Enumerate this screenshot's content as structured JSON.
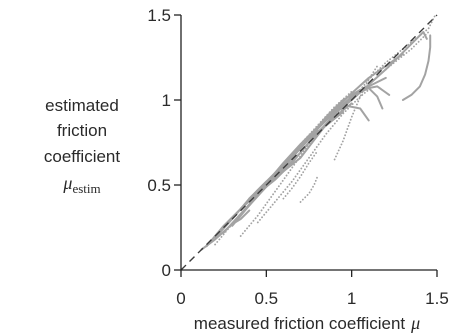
{
  "chart_data": {
    "type": "line",
    "title": "",
    "xlabel": "measured friction coefficient",
    "xlabel_symbol": "μ",
    "ylabel_lines": [
      "estimated",
      "friction",
      "coefficient"
    ],
    "ylabel_symbol": "μ",
    "ylabel_subscript": "estim",
    "xlim": [
      0,
      1.5
    ],
    "ylim": [
      0,
      1.5
    ],
    "x_ticks": [
      {
        "value": 0,
        "label": "0"
      },
      {
        "value": 0.5,
        "label": "0.5"
      },
      {
        "value": 1,
        "label": "1"
      },
      {
        "value": 1.5,
        "label": "1.5"
      }
    ],
    "y_ticks": [
      {
        "value": 0,
        "label": "0"
      },
      {
        "value": 0.5,
        "label": "0.5"
      },
      {
        "value": 1,
        "label": "1"
      },
      {
        "value": 1.5,
        "label": "1.5"
      }
    ],
    "grid": false,
    "colors": {
      "trace": "#a3a3a3",
      "reference": "#3c3c3c",
      "axis": "#222222"
    },
    "reference_line": {
      "x": [
        0,
        1.5
      ],
      "y": [
        0,
        1.5
      ],
      "style": "dashed"
    },
    "series": [
      {
        "style": "solid",
        "x": [
          0.12,
          0.2,
          0.3,
          0.4,
          0.5,
          0.6,
          0.7,
          0.8,
          0.9,
          1.0,
          1.1,
          1.2,
          1.3
        ],
        "y": [
          0.12,
          0.18,
          0.27,
          0.38,
          0.5,
          0.61,
          0.72,
          0.83,
          0.94,
          1.04,
          1.13,
          1.2,
          1.27
        ]
      },
      {
        "style": "solid",
        "x": [
          0.15,
          0.25,
          0.35,
          0.45,
          0.55,
          0.65,
          0.75,
          0.85,
          0.95,
          1.05
        ],
        "y": [
          0.14,
          0.26,
          0.36,
          0.45,
          0.53,
          0.63,
          0.75,
          0.86,
          0.97,
          1.06
        ]
      },
      {
        "style": "solid",
        "x": [
          0.2,
          0.3,
          0.4,
          0.5,
          0.6,
          0.7,
          0.8,
          0.9,
          1.0,
          1.1,
          1.2
        ],
        "y": [
          0.19,
          0.3,
          0.42,
          0.52,
          0.58,
          0.66,
          0.79,
          0.92,
          1.02,
          1.08,
          1.13
        ]
      },
      {
        "style": "solid",
        "x": [
          0.25,
          0.35,
          0.45,
          0.55,
          0.65,
          0.75,
          0.85,
          0.95
        ],
        "y": [
          0.22,
          0.33,
          0.44,
          0.54,
          0.66,
          0.77,
          0.85,
          0.93
        ]
      },
      {
        "style": "solid",
        "x": [
          0.3,
          0.4,
          0.5,
          0.6,
          0.7,
          0.8,
          0.9,
          1.0
        ],
        "y": [
          0.26,
          0.38,
          0.49,
          0.59,
          0.69,
          0.81,
          0.9,
          0.98
        ]
      },
      {
        "style": "solid",
        "x": [
          0.35,
          0.45,
          0.55,
          0.65,
          0.75,
          0.85,
          0.95,
          1.05,
          1.1
        ],
        "y": [
          0.36,
          0.47,
          0.57,
          0.67,
          0.78,
          0.88,
          0.97,
          0.95,
          0.88
        ]
      },
      {
        "style": "solid",
        "x": [
          0.4,
          0.5,
          0.6,
          0.7,
          0.8,
          0.9
        ],
        "y": [
          0.42,
          0.51,
          0.63,
          0.74,
          0.84,
          0.95
        ]
      },
      {
        "style": "solid",
        "x": [
          0.45,
          0.55,
          0.6,
          0.7,
          0.8
        ],
        "y": [
          0.45,
          0.55,
          0.62,
          0.72,
          0.82
        ]
      },
      {
        "style": "solid",
        "x": [
          0.55,
          0.65,
          0.75,
          0.85,
          0.95,
          1.05,
          1.15,
          1.22
        ],
        "y": [
          0.55,
          0.66,
          0.78,
          0.9,
          1.0,
          1.06,
          1.08,
          1.03
        ]
      },
      {
        "style": "solid",
        "x": [
          0.7,
          0.8,
          0.9,
          1.0,
          1.1,
          1.15,
          1.18
        ],
        "y": [
          0.73,
          0.83,
          0.93,
          1.02,
          1.07,
          1.02,
          0.95
        ]
      },
      {
        "style": "solid",
        "x": [
          0.9,
          1.0,
          1.1,
          1.2,
          1.3,
          1.38,
          1.42,
          1.44
        ],
        "y": [
          0.92,
          1.0,
          1.09,
          1.18,
          1.28,
          1.36,
          1.4,
          1.36
        ]
      },
      {
        "style": "solid",
        "x": [
          1.3,
          1.35,
          1.4,
          1.43,
          1.45,
          1.46,
          1.46
        ],
        "y": [
          1.0,
          1.03,
          1.08,
          1.15,
          1.23,
          1.31,
          1.38
        ]
      },
      {
        "style": "solid",
        "x": [
          0.3,
          0.35,
          0.4
        ],
        "y": [
          0.27,
          0.3,
          0.35
        ]
      },
      {
        "style": "dotted",
        "x": [
          0.35,
          0.45,
          0.55,
          0.65,
          0.75,
          0.85,
          0.95
        ],
        "y": [
          0.2,
          0.32,
          0.46,
          0.6,
          0.74,
          0.86,
          0.95
        ]
      },
      {
        "style": "dotted",
        "x": [
          0.45,
          0.55,
          0.65,
          0.75,
          0.85,
          0.95,
          1.05,
          1.1
        ],
        "y": [
          0.28,
          0.4,
          0.52,
          0.66,
          0.8,
          0.92,
          1.02,
          1.06
        ]
      },
      {
        "style": "dotted",
        "x": [
          0.6,
          0.65,
          0.7,
          0.75,
          0.8
        ],
        "y": [
          0.42,
          0.48,
          0.55,
          0.63,
          0.7
        ]
      },
      {
        "style": "dotted",
        "x": [
          0.9,
          0.95,
          1.0,
          1.05,
          1.1,
          1.15
        ],
        "y": [
          0.65,
          0.76,
          0.9,
          1.02,
          1.12,
          1.2
        ]
      },
      {
        "style": "dotted",
        "x": [
          1.0,
          1.1,
          1.2,
          1.3,
          1.4,
          1.45,
          1.49
        ],
        "y": [
          1.0,
          1.12,
          1.22,
          1.3,
          1.38,
          1.42,
          1.5
        ]
      },
      {
        "style": "dotted",
        "x": [
          0.7,
          0.75,
          0.78,
          0.8
        ],
        "y": [
          0.4,
          0.45,
          0.5,
          0.55
        ]
      },
      {
        "style": "dotted",
        "x": [
          0.2,
          0.3,
          0.4,
          0.5,
          0.6,
          0.7,
          0.8,
          0.9,
          1.0
        ],
        "y": [
          0.15,
          0.27,
          0.38,
          0.5,
          0.62,
          0.74,
          0.85,
          0.96,
          1.05
        ]
      },
      {
        "style": "dotted",
        "x": [
          1.2,
          1.25,
          1.3,
          1.35,
          1.4,
          1.45
        ],
        "y": [
          1.18,
          1.22,
          1.26,
          1.3,
          1.35,
          1.4
        ]
      }
    ]
  }
}
